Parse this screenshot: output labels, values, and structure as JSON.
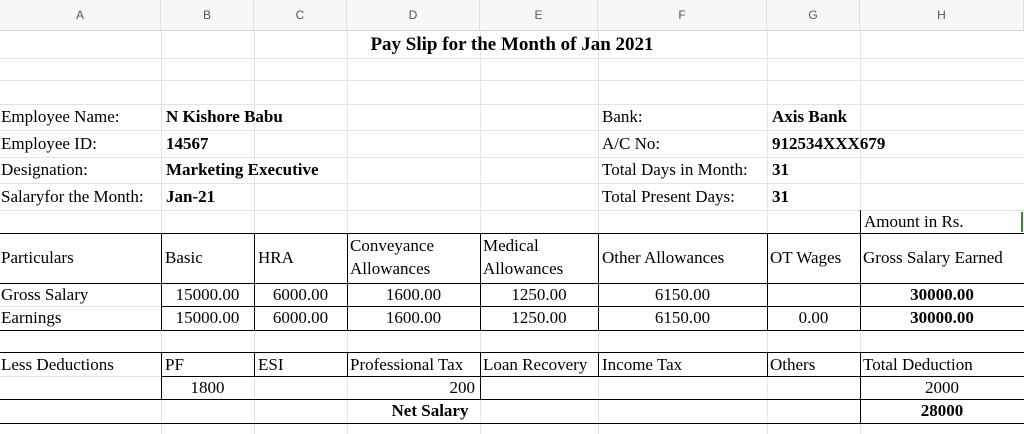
{
  "columns": [
    "A",
    "B",
    "C",
    "D",
    "E",
    "F",
    "G",
    "H"
  ],
  "title": "Pay Slip for the Month of Jan 2021",
  "employee": {
    "name_label": "Employee Name:",
    "name_value": "N Kishore Babu",
    "id_label": "Employee ID:",
    "id_value": "14567",
    "designation_label": "Designation:",
    "designation_value": "Marketing Executive",
    "month_label": "Salaryfor the  Month:",
    "month_value": "Jan-21"
  },
  "bank": {
    "bank_label": "Bank:",
    "bank_value": "Axis Bank",
    "acno_label": "A/C No:",
    "acno_value": "912534XXX679",
    "days_label": "Total Days in Month:",
    "days_value": "31",
    "present_label": "Total Present Days:",
    "present_value": "31"
  },
  "amount_note": "Amount in Rs.",
  "earnings_table": {
    "headers": {
      "particulars": "Particulars",
      "basic": "Basic",
      "hra": "HRA",
      "conveyance_1": "Conveyance",
      "conveyance_2": "Allowances",
      "medical_1": "Medical",
      "medical_2": "Allowances",
      "other": "Other Allowances",
      "ot": "OT Wages",
      "gross": "Gross Salary Earned"
    },
    "rows": [
      {
        "label": "Gross Salary",
        "basic": "15000.00",
        "hra": "6000.00",
        "conveyance": "1600.00",
        "medical": "1250.00",
        "other": "6150.00",
        "ot": "",
        "gross": "30000.00"
      },
      {
        "label": "Earnings",
        "basic": "15000.00",
        "hra": "6000.00",
        "conveyance": "1600.00",
        "medical": "1250.00",
        "other": "6150.00",
        "ot": "0.00",
        "gross": "30000.00"
      }
    ]
  },
  "deductions_table": {
    "headers": {
      "label": "Less Deductions",
      "pf": "PF",
      "esi": "ESI",
      "ptax": "Professional Tax",
      "loan": "Loan Recovery",
      "itax": "Income Tax",
      "others": "Others",
      "total": "Total Deduction"
    },
    "values": {
      "pf": "1800",
      "ptax": "200",
      "total": "2000"
    }
  },
  "net": {
    "label": "Net Salary",
    "value": "28000"
  }
}
